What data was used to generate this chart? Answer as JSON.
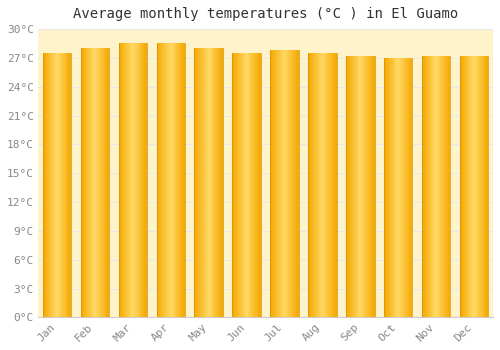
{
  "title": "Average monthly temperatures (°C ) in El Guamo",
  "months": [
    "Jan",
    "Feb",
    "Mar",
    "Apr",
    "May",
    "Jun",
    "Jul",
    "Aug",
    "Sep",
    "Oct",
    "Nov",
    "Dec"
  ],
  "temperatures": [
    27.5,
    28.0,
    28.5,
    28.5,
    28.0,
    27.5,
    27.8,
    27.5,
    27.2,
    27.0,
    27.2,
    27.2
  ],
  "bar_color_main": "#F5A800",
  "bar_color_highlight": "#FFD966",
  "bar_edge_color": "#E09000",
  "ylim": [
    0,
    30
  ],
  "ytick_step": 3,
  "plot_bg_color": "#FFF3CC",
  "figure_bg_color": "#FFFFFF",
  "grid_color": "#E8E8E8",
  "title_fontsize": 10,
  "tick_fontsize": 8,
  "font_family": "monospace"
}
